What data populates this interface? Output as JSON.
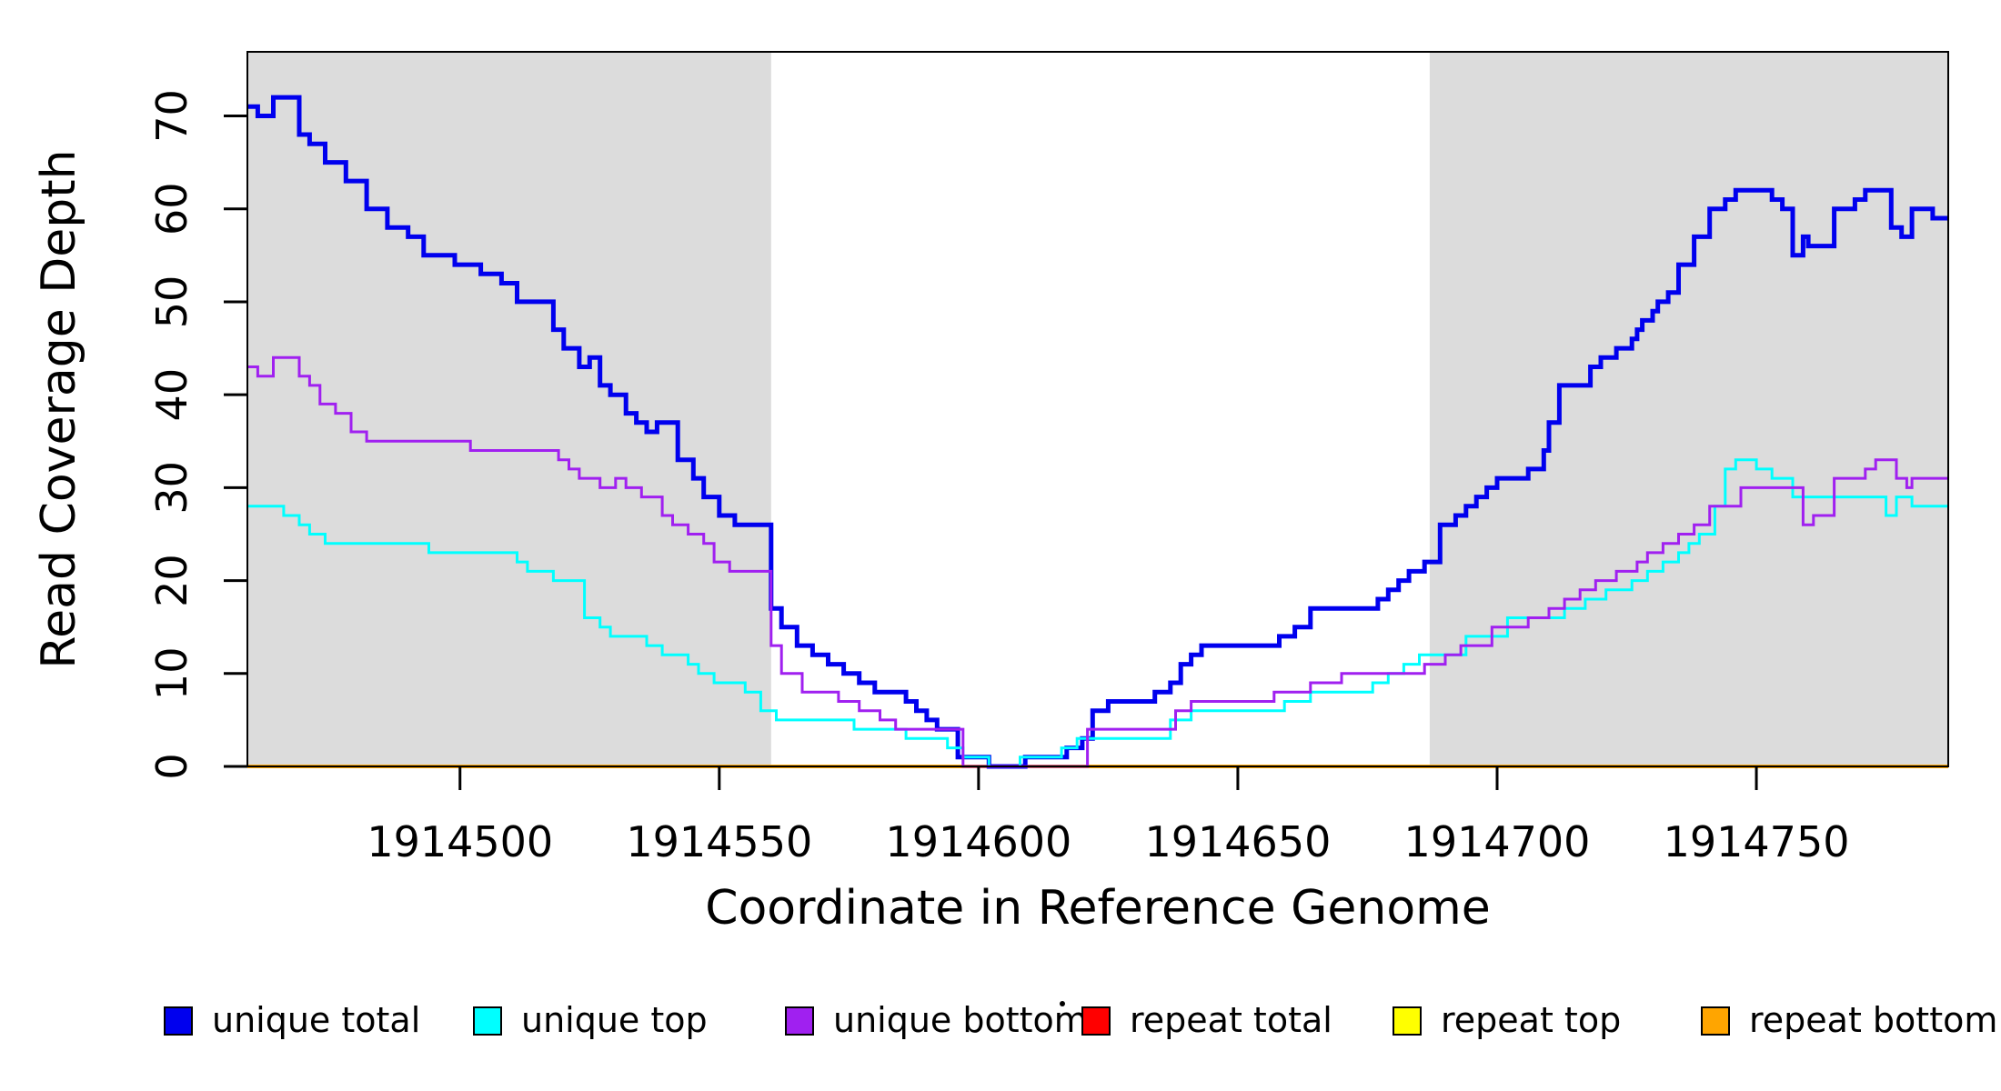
{
  "axes": {
    "x_label": "Coordinate in Reference Genome",
    "y_label": "Read Coverage Depth",
    "x_ticks": [
      1914500,
      1914550,
      1914600,
      1914650,
      1914700,
      1914750
    ],
    "y_ticks": [
      0,
      10,
      20,
      30,
      40,
      50,
      60,
      70
    ]
  },
  "legend": [
    {
      "label": "unique total",
      "color": "#0000EE"
    },
    {
      "label": "unique top",
      "color": "#00FFFF"
    },
    {
      "label": "unique bottom",
      "color": "#A020F0"
    },
    {
      "label": "repeat total",
      "color": "#FF0000"
    },
    {
      "label": "repeat top",
      "color": "#FFFF00"
    },
    {
      "label": "repeat bottom",
      "color": "#FFA500"
    }
  ],
  "chart_data": {
    "type": "line",
    "subtype": "step-after",
    "title": "",
    "xlabel": "Coordinate in Reference Genome",
    "ylabel": "Read Coverage Depth",
    "xlim": [
      1914459,
      1914787
    ],
    "ylim": [
      0,
      76.9
    ],
    "grid": false,
    "legend_position": "bottom",
    "background_bands": {
      "color": "#DCDCDC",
      "regions": [
        {
          "x0": 1914459,
          "x1": 1914560
        },
        {
          "x0": 1914687,
          "x1": 1914787
        }
      ]
    },
    "series": [
      {
        "name": "unique total",
        "color": "#0000EE",
        "width": 5,
        "points": [
          [
            1914459,
            71
          ],
          [
            1914461,
            70
          ],
          [
            1914464,
            72
          ],
          [
            1914469,
            68
          ],
          [
            1914471,
            67
          ],
          [
            1914474,
            65
          ],
          [
            1914478,
            63
          ],
          [
            1914482,
            60
          ],
          [
            1914486,
            58
          ],
          [
            1914490,
            57
          ],
          [
            1914493,
            55
          ],
          [
            1914499,
            54
          ],
          [
            1914504,
            53
          ],
          [
            1914508,
            52
          ],
          [
            1914511,
            50
          ],
          [
            1914518,
            47
          ],
          [
            1914520,
            45
          ],
          [
            1914523,
            43
          ],
          [
            1914525,
            44
          ],
          [
            1914527,
            41
          ],
          [
            1914529,
            40
          ],
          [
            1914532,
            38
          ],
          [
            1914534,
            37
          ],
          [
            1914536,
            36
          ],
          [
            1914538,
            37
          ],
          [
            1914542,
            33
          ],
          [
            1914545,
            31
          ],
          [
            1914547,
            29
          ],
          [
            1914550,
            27
          ],
          [
            1914553,
            26
          ],
          [
            1914560,
            17
          ],
          [
            1914562,
            15
          ],
          [
            1914565,
            13
          ],
          [
            1914568,
            12
          ],
          [
            1914571,
            11
          ],
          [
            1914574,
            10
          ],
          [
            1914577,
            9
          ],
          [
            1914580,
            8
          ],
          [
            1914586,
            7
          ],
          [
            1914588,
            6
          ],
          [
            1914590,
            5
          ],
          [
            1914592,
            4
          ],
          [
            1914596,
            1
          ],
          [
            1914602,
            0
          ],
          [
            1914609,
            1
          ],
          [
            1914617,
            2
          ],
          [
            1914620,
            3
          ],
          [
            1914622,
            6
          ],
          [
            1914625,
            7
          ],
          [
            1914634,
            8
          ],
          [
            1914637,
            9
          ],
          [
            1914639,
            11
          ],
          [
            1914641,
            12
          ],
          [
            1914643,
            13
          ],
          [
            1914658,
            14
          ],
          [
            1914661,
            15
          ],
          [
            1914664,
            17
          ],
          [
            1914677,
            18
          ],
          [
            1914679,
            19
          ],
          [
            1914681,
            20
          ],
          [
            1914683,
            21
          ],
          [
            1914686,
            22
          ],
          [
            1914689,
            26
          ],
          [
            1914692,
            27
          ],
          [
            1914694,
            28
          ],
          [
            1914696,
            29
          ],
          [
            1914698,
            30
          ],
          [
            1914700,
            31
          ],
          [
            1914706,
            32
          ],
          [
            1914709,
            34
          ],
          [
            1914710,
            37
          ],
          [
            1914712,
            41
          ],
          [
            1914718,
            43
          ],
          [
            1914720,
            44
          ],
          [
            1914723,
            45
          ],
          [
            1914726,
            46
          ],
          [
            1914727,
            47
          ],
          [
            1914728,
            48
          ],
          [
            1914730,
            49
          ],
          [
            1914731,
            50
          ],
          [
            1914733,
            51
          ],
          [
            1914735,
            54
          ],
          [
            1914738,
            57
          ],
          [
            1914741,
            60
          ],
          [
            1914744,
            61
          ],
          [
            1914746,
            62
          ],
          [
            1914753,
            61
          ],
          [
            1914755,
            60
          ],
          [
            1914757,
            55
          ],
          [
            1914759,
            57
          ],
          [
            1914760,
            56
          ],
          [
            1914765,
            60
          ],
          [
            1914769,
            61
          ],
          [
            1914771,
            62
          ],
          [
            1914776,
            58
          ],
          [
            1914778,
            57
          ],
          [
            1914780,
            60
          ],
          [
            1914784,
            59
          ],
          [
            1914787,
            59
          ]
        ]
      },
      {
        "name": "unique top",
        "color": "#00FFFF",
        "width": 3,
        "points": [
          [
            1914459,
            28
          ],
          [
            1914466,
            27
          ],
          [
            1914469,
            26
          ],
          [
            1914471,
            25
          ],
          [
            1914474,
            24
          ],
          [
            1914494,
            23
          ],
          [
            1914511,
            22
          ],
          [
            1914513,
            21
          ],
          [
            1914518,
            20
          ],
          [
            1914524,
            16
          ],
          [
            1914527,
            15
          ],
          [
            1914529,
            14
          ],
          [
            1914536,
            13
          ],
          [
            1914539,
            12
          ],
          [
            1914544,
            11
          ],
          [
            1914546,
            10
          ],
          [
            1914549,
            9
          ],
          [
            1914555,
            8
          ],
          [
            1914558,
            6
          ],
          [
            1914561,
            5
          ],
          [
            1914576,
            4
          ],
          [
            1914586,
            3
          ],
          [
            1914594,
            2
          ],
          [
            1914597,
            1
          ],
          [
            1914602,
            0
          ],
          [
            1914608,
            1
          ],
          [
            1914616,
            2
          ],
          [
            1914619,
            3
          ],
          [
            1914637,
            5
          ],
          [
            1914641,
            6
          ],
          [
            1914659,
            7
          ],
          [
            1914664,
            8
          ],
          [
            1914676,
            9
          ],
          [
            1914679,
            10
          ],
          [
            1914682,
            11
          ],
          [
            1914685,
            12
          ],
          [
            1914694,
            14
          ],
          [
            1914702,
            16
          ],
          [
            1914713,
            17
          ],
          [
            1914717,
            18
          ],
          [
            1914721,
            19
          ],
          [
            1914726,
            20
          ],
          [
            1914729,
            21
          ],
          [
            1914732,
            22
          ],
          [
            1914735,
            23
          ],
          [
            1914737,
            24
          ],
          [
            1914739,
            25
          ],
          [
            1914742,
            28
          ],
          [
            1914744,
            32
          ],
          [
            1914746,
            33
          ],
          [
            1914750,
            32
          ],
          [
            1914753,
            31
          ],
          [
            1914757,
            29
          ],
          [
            1914775,
            27
          ],
          [
            1914777,
            29
          ],
          [
            1914780,
            28
          ],
          [
            1914787,
            28
          ]
        ]
      },
      {
        "name": "unique bottom",
        "color": "#A020F0",
        "width": 3,
        "points": [
          [
            1914459,
            43
          ],
          [
            1914461,
            42
          ],
          [
            1914464,
            44
          ],
          [
            1914469,
            42
          ],
          [
            1914471,
            41
          ],
          [
            1914473,
            39
          ],
          [
            1914476,
            38
          ],
          [
            1914479,
            36
          ],
          [
            1914482,
            35
          ],
          [
            1914502,
            34
          ],
          [
            1914519,
            33
          ],
          [
            1914521,
            32
          ],
          [
            1914523,
            31
          ],
          [
            1914527,
            30
          ],
          [
            1914530,
            31
          ],
          [
            1914532,
            30
          ],
          [
            1914535,
            29
          ],
          [
            1914539,
            27
          ],
          [
            1914541,
            26
          ],
          [
            1914544,
            25
          ],
          [
            1914547,
            24
          ],
          [
            1914549,
            22
          ],
          [
            1914552,
            21
          ],
          [
            1914560,
            13
          ],
          [
            1914562,
            10
          ],
          [
            1914566,
            8
          ],
          [
            1914573,
            7
          ],
          [
            1914577,
            6
          ],
          [
            1914581,
            5
          ],
          [
            1914584,
            4
          ],
          [
            1914597,
            0
          ],
          [
            1914621,
            4
          ],
          [
            1914638,
            6
          ],
          [
            1914641,
            7
          ],
          [
            1914657,
            8
          ],
          [
            1914664,
            9
          ],
          [
            1914670,
            10
          ],
          [
            1914686,
            11
          ],
          [
            1914690,
            12
          ],
          [
            1914693,
            13
          ],
          [
            1914699,
            15
          ],
          [
            1914706,
            16
          ],
          [
            1914710,
            17
          ],
          [
            1914713,
            18
          ],
          [
            1914716,
            19
          ],
          [
            1914719,
            20
          ],
          [
            1914723,
            21
          ],
          [
            1914727,
            22
          ],
          [
            1914729,
            23
          ],
          [
            1914732,
            24
          ],
          [
            1914735,
            25
          ],
          [
            1914738,
            26
          ],
          [
            1914741,
            28
          ],
          [
            1914747,
            30
          ],
          [
            1914759,
            26
          ],
          [
            1914761,
            27
          ],
          [
            1914765,
            31
          ],
          [
            1914771,
            32
          ],
          [
            1914773,
            33
          ],
          [
            1914777,
            31
          ],
          [
            1914779,
            30
          ],
          [
            1914780,
            31
          ],
          [
            1914787,
            31
          ]
        ]
      },
      {
        "name": "repeat total",
        "color": "#FF0000",
        "width": 4,
        "points": [
          [
            1914459,
            0
          ],
          [
            1914787,
            0
          ]
        ]
      },
      {
        "name": "repeat top",
        "color": "#FFFF00",
        "width": 4,
        "points": [
          [
            1914459,
            0
          ],
          [
            1914787,
            0
          ]
        ]
      },
      {
        "name": "repeat bottom",
        "color": "#FFA500",
        "width": 4,
        "points": [
          [
            1914459,
            0
          ],
          [
            1914787,
            0
          ]
        ]
      }
    ]
  }
}
